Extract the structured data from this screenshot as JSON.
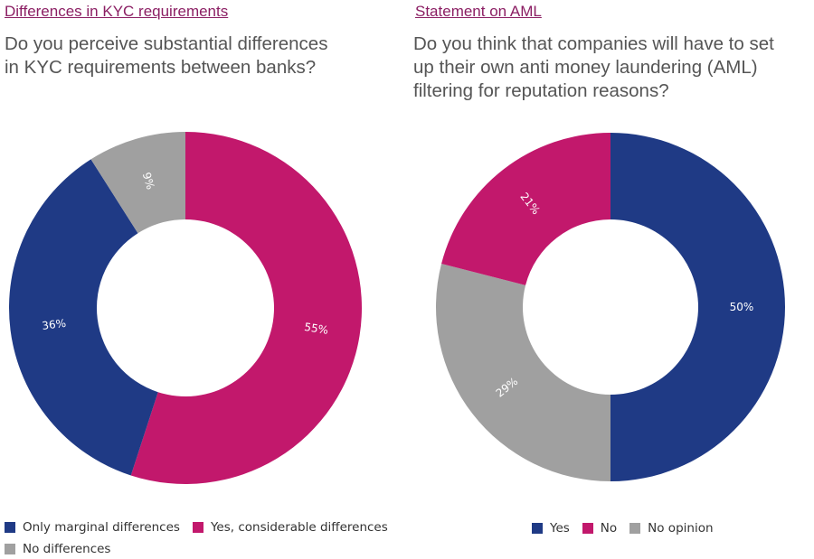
{
  "colors": {
    "navy": "#1f3a85",
    "magenta": "#c2186c",
    "gray": "#a0a0a0",
    "title": "#8b1e63"
  },
  "left_panel": {
    "title": "Differences in KYC requirements",
    "question": "Do you perceive substantial differences\nin KYC requirements between banks?",
    "legend": [
      {
        "label": "Only marginal differences",
        "color": "#1f3a85"
      },
      {
        "label": "Yes, considerable differences",
        "color": "#c2186c"
      },
      {
        "label": "No differences",
        "color": "#a0a0a0"
      }
    ]
  },
  "right_panel": {
    "title": "Statement on AML",
    "question": "Do you think that companies will have to set\nup their own anti money laundering (AML)\nfiltering for reputation reasons?",
    "legend": [
      {
        "label": "Yes",
        "color": "#1f3a85"
      },
      {
        "label": "No",
        "color": "#c2186c"
      },
      {
        "label": "No opinion",
        "color": "#a0a0a0"
      }
    ]
  },
  "chart_data": [
    {
      "type": "pie",
      "title": "Differences in KYC requirements",
      "donut": true,
      "start": "12 o'clock",
      "direction": "clockwise",
      "slices": [
        {
          "label": "Yes, considerable differences",
          "value": 55,
          "display": "55%",
          "color": "#c2186c"
        },
        {
          "label": "Only marginal differences",
          "value": 36,
          "display": "36%",
          "color": "#1f3a85"
        },
        {
          "label": "No differences",
          "value": 9,
          "display": "9%",
          "color": "#a0a0a0"
        }
      ],
      "legend_position": "bottom"
    },
    {
      "type": "pie",
      "title": "Statement on AML",
      "donut": true,
      "start": "12 o'clock",
      "direction": "clockwise",
      "slices": [
        {
          "label": "Yes",
          "value": 50,
          "display": "50%",
          "color": "#1f3a85"
        },
        {
          "label": "No opinion",
          "value": 29,
          "display": "29%",
          "color": "#a0a0a0"
        },
        {
          "label": "No",
          "value": 21,
          "display": "21%",
          "color": "#c2186c"
        }
      ],
      "legend_position": "bottom"
    }
  ]
}
